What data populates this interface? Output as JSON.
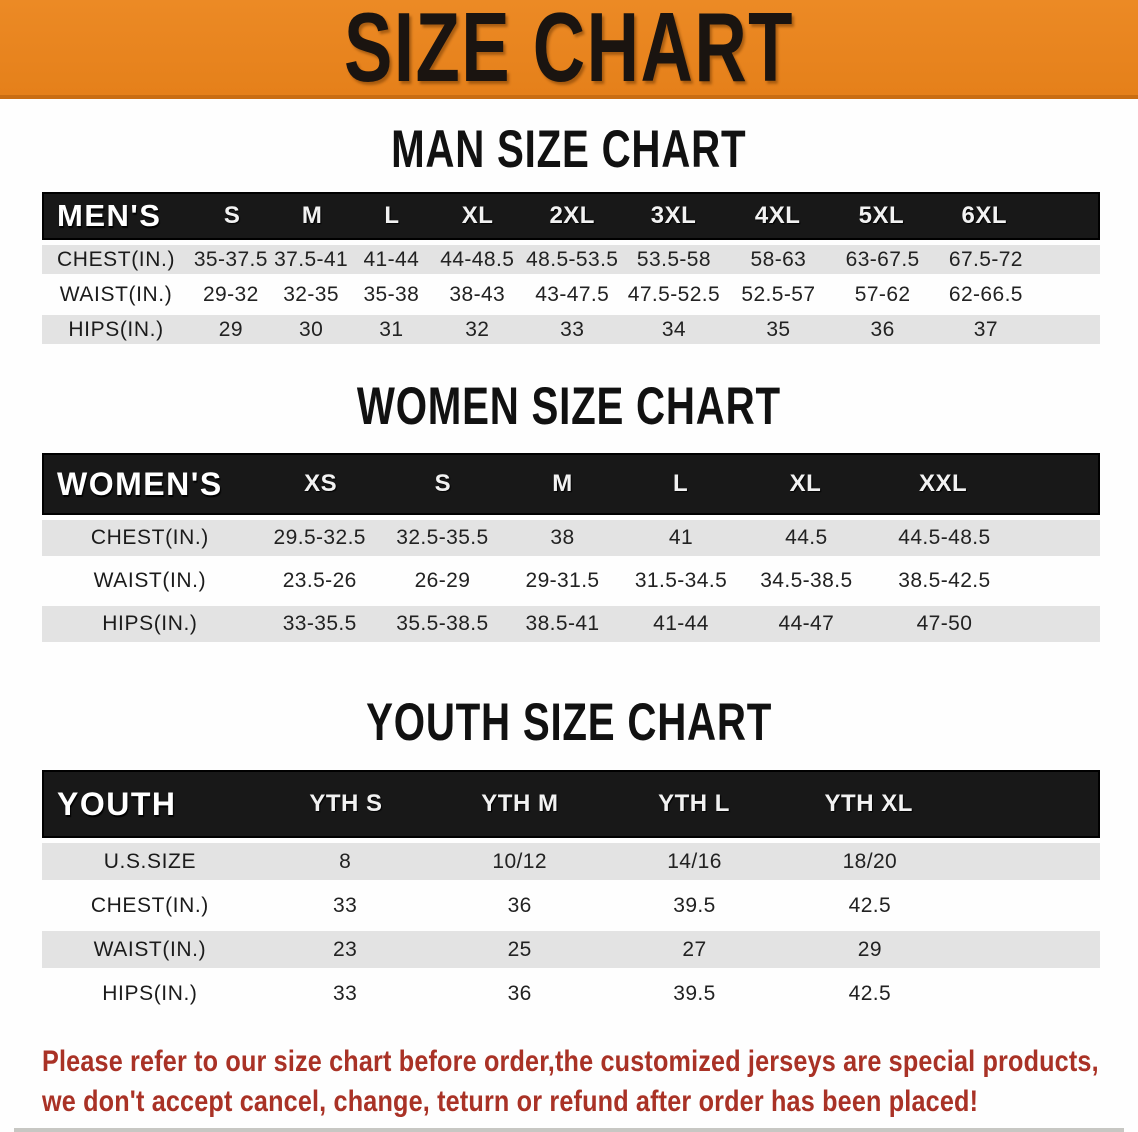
{
  "banner": {
    "title": "SIZE CHART"
  },
  "colors": {
    "banner_bg": "#E8821C",
    "banner_edge": "#C96D12",
    "band_bg": "#181818",
    "row_alt_bg": "#E3E3E3",
    "disclaimer_color": "#A93226"
  },
  "sections": [
    {
      "id": "man",
      "heading": "MAN SIZE CHART",
      "table": {
        "header_label": "MEN'S",
        "columns": [
          "S",
          "M",
          "L",
          "XL",
          "2XL",
          "3XL",
          "4XL",
          "5XL",
          "6XL"
        ],
        "rows": [
          {
            "label": "CHEST(IN.)",
            "values": [
              "35-37.5",
              "37.5-41",
              "41-44",
              "44-48.5",
              "48.5-53.5",
              "53.5-58",
              "58-63",
              "63-67.5",
              "67.5-72"
            ]
          },
          {
            "label": "WAIST(IN.)",
            "values": [
              "29-32",
              "32-35",
              "35-38",
              "38-43",
              "43-47.5",
              "47.5-52.5",
              "52.5-57",
              "57-62",
              "62-66.5"
            ]
          },
          {
            "label": "HIPS(IN.)",
            "values": [
              "29",
              "30",
              "31",
              "32",
              "33",
              "34",
              "35",
              "36",
              "37"
            ]
          }
        ]
      }
    },
    {
      "id": "women",
      "heading": "WOMEN SIZE CHART",
      "table": {
        "header_label": "WOMEN'S",
        "columns": [
          "XS",
          "S",
          "M",
          "L",
          "XL",
          "XXL"
        ],
        "rows": [
          {
            "label": "CHEST(IN.)",
            "values": [
              "29.5-32.5",
              "32.5-35.5",
              "38",
              "41",
              "44.5",
              "44.5-48.5"
            ]
          },
          {
            "label": "WAIST(IN.)",
            "values": [
              "23.5-26",
              "26-29",
              "29-31.5",
              "31.5-34.5",
              "34.5-38.5",
              "38.5-42.5"
            ]
          },
          {
            "label": "HIPS(IN.)",
            "values": [
              "33-35.5",
              "35.5-38.5",
              "38.5-41",
              "41-44",
              "44-47",
              "47-50"
            ]
          }
        ]
      }
    },
    {
      "id": "youth",
      "heading": "YOUTH SIZE CHART",
      "table": {
        "header_label": "YOUTH",
        "columns": [
          "YTH S",
          "YTH M",
          "YTH L",
          "YTH XL"
        ],
        "rows": [
          {
            "label": "U.S.SIZE",
            "values": [
              "8",
              "10/12",
              "14/16",
              "18/20"
            ]
          },
          {
            "label": "CHEST(IN.)",
            "values": [
              "33",
              "36",
              "39.5",
              "42.5"
            ]
          },
          {
            "label": "WAIST(IN.)",
            "values": [
              "23",
              "25",
              "27",
              "29"
            ]
          },
          {
            "label": "HIPS(IN.)",
            "values": [
              "33",
              "36",
              "39.5",
              "42.5"
            ]
          }
        ]
      }
    }
  ],
  "disclaimer": {
    "line1": "Please refer to our size chart before order,the customized jerseys are special products,",
    "line2": "we don't accept cancel, change, teturn or refund after order has been placed!"
  }
}
